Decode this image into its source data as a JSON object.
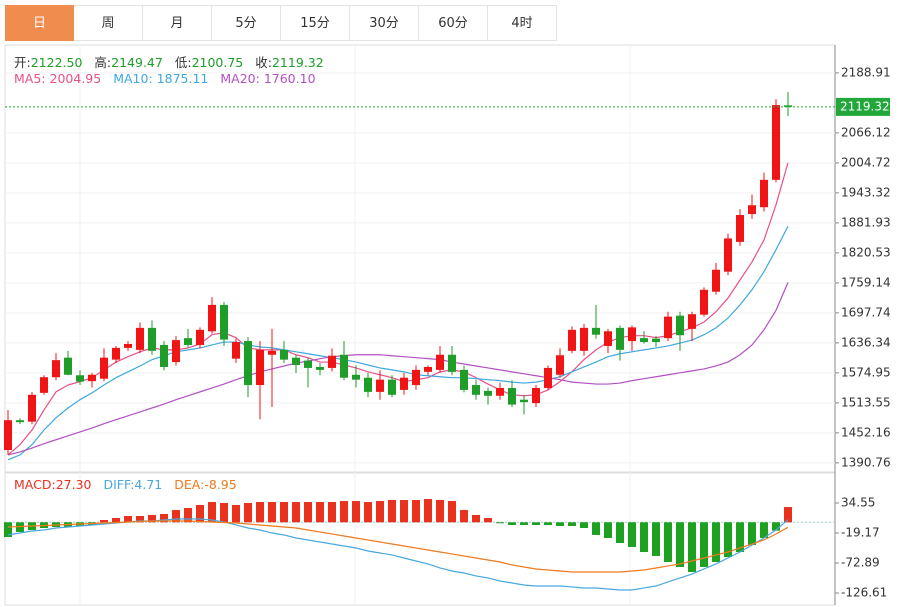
{
  "tabs": [
    "日",
    "周",
    "月",
    "5分",
    "15分",
    "30分",
    "60分",
    "4时"
  ],
  "active_tab": 0,
  "chart_data": [
    {
      "type": "candlestick",
      "readout": [
        {
          "name": "开:",
          "value": "2122.50"
        },
        {
          "name": "高:",
          "value": "2149.47"
        },
        {
          "name": "低:",
          "value": "2100.75"
        },
        {
          "name": "收:",
          "value": "2119.32"
        }
      ],
      "up_color": "#f01414",
      "down_color": "#1e9e28",
      "open": [
        1417,
        1478,
        1475,
        1534,
        1566,
        1606,
        1570,
        1558,
        1563,
        1602,
        1626,
        1622,
        1667,
        1632,
        1597,
        1646,
        1632,
        1660,
        1714,
        1604,
        1640,
        1550,
        1612,
        1622,
        1606,
        1600,
        1587,
        1585,
        1612,
        1571,
        1565,
        1536,
        1561,
        1540,
        1550,
        1577,
        1581,
        1612,
        1581,
        1550,
        1538,
        1528,
        1544,
        1520,
        1513,
        1544,
        1571,
        1620,
        1620,
        1667,
        1630,
        1667,
        1640,
        1646,
        1645,
        1646,
        1692,
        1665,
        1694,
        1741,
        1782,
        1843,
        1900,
        1914,
        1970,
        2122.5
      ],
      "high": [
        1499,
        1482,
        1536,
        1570,
        1615,
        1620,
        1580,
        1575,
        1625,
        1630,
        1640,
        1678,
        1682,
        1640,
        1650,
        1665,
        1668,
        1730,
        1720,
        1645,
        1648,
        1640,
        1665,
        1640,
        1612,
        1606,
        1595,
        1625,
        1640,
        1590,
        1575,
        1580,
        1570,
        1575,
        1590,
        1590,
        1630,
        1630,
        1590,
        1560,
        1545,
        1555,
        1560,
        1530,
        1550,
        1590,
        1625,
        1670,
        1675,
        1714,
        1665,
        1672,
        1672,
        1660,
        1650,
        1700,
        1700,
        1700,
        1750,
        1800,
        1860,
        1910,
        1940,
        1985,
        2135,
        2149.47
      ],
      "low": [
        1407,
        1470,
        1470,
        1530,
        1560,
        1570,
        1550,
        1545,
        1558,
        1595,
        1620,
        1615,
        1612,
        1580,
        1590,
        1625,
        1625,
        1655,
        1630,
        1595,
        1525,
        1480,
        1505,
        1595,
        1575,
        1545,
        1570,
        1578,
        1560,
        1545,
        1525,
        1520,
        1525,
        1530,
        1540,
        1570,
        1575,
        1570,
        1535,
        1520,
        1510,
        1520,
        1505,
        1490,
        1505,
        1540,
        1565,
        1615,
        1610,
        1645,
        1615,
        1600,
        1620,
        1635,
        1628,
        1640,
        1620,
        1640,
        1690,
        1735,
        1775,
        1835,
        1890,
        1905,
        1965,
        2100.75
      ],
      "close": [
        1478,
        1474,
        1530,
        1566,
        1601,
        1571,
        1557,
        1571,
        1606,
        1626,
        1634,
        1667,
        1620,
        1587,
        1642,
        1632,
        1663,
        1714,
        1643,
        1638,
        1550,
        1622,
        1620,
        1602,
        1591,
        1585,
        1581,
        1610,
        1565,
        1561,
        1536,
        1561,
        1530,
        1565,
        1581,
        1587,
        1612,
        1577,
        1540,
        1530,
        1528,
        1544,
        1510,
        1515,
        1544,
        1585,
        1611,
        1663,
        1667,
        1653,
        1660,
        1622,
        1668,
        1638,
        1638,
        1690,
        1652,
        1695,
        1745,
        1786,
        1850,
        1898,
        1918,
        1970,
        2123,
        2119.32
      ],
      "series": [
        {
          "name": "MA5:",
          "last_label": "2004.95",
          "color": "#e8508a",
          "values": [
            1407,
            1428,
            1458,
            1499,
            1536,
            1550,
            1557,
            1565,
            1581,
            1597,
            1608,
            1618,
            1626,
            1622,
            1622,
            1626,
            1634,
            1653,
            1657,
            1647,
            1626,
            1622,
            1622,
            1622,
            1612,
            1606,
            1597,
            1597,
            1591,
            1585,
            1577,
            1571,
            1565,
            1557,
            1561,
            1565,
            1577,
            1581,
            1577,
            1565,
            1552,
            1540,
            1530,
            1528,
            1530,
            1540,
            1557,
            1577,
            1602,
            1622,
            1638,
            1647,
            1651,
            1651,
            1647,
            1651,
            1659,
            1667,
            1679,
            1700,
            1728,
            1765,
            1802,
            1847,
            1919,
            2004.95
          ]
        },
        {
          "name": "MA10:",
          "last_label": "1875.11",
          "color": "#3ea8e0",
          "values": [
            1397,
            1407,
            1428,
            1458,
            1483,
            1503,
            1520,
            1534,
            1550,
            1565,
            1577,
            1589,
            1602,
            1610,
            1618,
            1622,
            1626,
            1632,
            1638,
            1638,
            1632,
            1628,
            1626,
            1622,
            1618,
            1614,
            1610,
            1606,
            1602,
            1597,
            1591,
            1585,
            1581,
            1577,
            1571,
            1569,
            1567,
            1565,
            1565,
            1563,
            1561,
            1559,
            1556,
            1554,
            1556,
            1561,
            1567,
            1577,
            1587,
            1597,
            1608,
            1614,
            1618,
            1622,
            1626,
            1630,
            1636,
            1642,
            1653,
            1667,
            1687,
            1714,
            1745,
            1782,
            1827,
            1875.11
          ]
        },
        {
          "name": "MA20:",
          "last_label": "1760.10",
          "color": "#b450c4",
          "values": [
            1407,
            1413,
            1421,
            1430,
            1438,
            1446,
            1454,
            1462,
            1471,
            1479,
            1487,
            1495,
            1503,
            1511,
            1520,
            1528,
            1536,
            1544,
            1552,
            1561,
            1569,
            1577,
            1583,
            1589,
            1595,
            1599,
            1604,
            1608,
            1610,
            1612,
            1612,
            1612,
            1610,
            1608,
            1606,
            1604,
            1602,
            1597,
            1593,
            1589,
            1585,
            1581,
            1577,
            1573,
            1569,
            1565,
            1561,
            1556,
            1554,
            1552,
            1552,
            1554,
            1559,
            1563,
            1567,
            1571,
            1575,
            1579,
            1583,
            1589,
            1597,
            1612,
            1632,
            1663,
            1703,
            1760.1
          ]
        }
      ],
      "last_price_color": "#22a83a",
      "ylim": [
        1372,
        2246
      ],
      "yticks": [
        2188.91,
        2066.12,
        2004.72,
        1943.32,
        1881.93,
        1820.53,
        1759.14,
        1697.74,
        1636.34,
        1574.95,
        1513.55,
        1452.16,
        1390.76
      ],
      "grid": true
    },
    {
      "type": "macd",
      "series": [
        {
          "name": "MACD:",
          "type": "bar",
          "last_label": "27.30",
          "color": "#e8321e",
          "down_color": "#1ea020",
          "values": [
            -26.3,
            -17.4,
            -13.8,
            -10.2,
            -8.4,
            -8.4,
            -6.6,
            -4.8,
            4.1,
            7.7,
            11.3,
            11.3,
            13.1,
            14.9,
            22.0,
            25.6,
            31.0,
            36.3,
            34.6,
            31.0,
            34.6,
            36.3,
            36.3,
            36.3,
            36.3,
            36.3,
            36.3,
            36.3,
            38.1,
            38.1,
            36.3,
            38.1,
            39.9,
            39.9,
            39.9,
            41.7,
            39.9,
            38.1,
            22.0,
            13.1,
            7.7,
            -1.5,
            -4.8,
            -4.8,
            -4.8,
            -4.8,
            -6.6,
            -6.6,
            -10.2,
            -22.7,
            -28.1,
            -37.1,
            -44.2,
            -53.2,
            -60.3,
            -71.1,
            -80.0,
            -89.0,
            -80.0,
            -71.1,
            -62.1,
            -53.2,
            -40.6,
            -28.1,
            -15.0,
            27.3
          ]
        },
        {
          "name": "DIFF:",
          "type": "line",
          "last_label": "4.71",
          "color": "#4aa8e0",
          "values": [
            -22.7,
            -19.2,
            -15.6,
            -13.8,
            -10.2,
            -8.4,
            -6.6,
            -4.8,
            -3.0,
            -1.3,
            0.5,
            2.3,
            2.3,
            4.1,
            5.9,
            5.9,
            5.9,
            4.1,
            0.5,
            -4.8,
            -10.2,
            -13.8,
            -19.2,
            -22.7,
            -28.1,
            -31.7,
            -35.3,
            -38.9,
            -42.4,
            -46.0,
            -51.4,
            -55.0,
            -58.5,
            -63.9,
            -69.3,
            -74.6,
            -81.8,
            -87.2,
            -90.8,
            -96.1,
            -99.7,
            -105.1,
            -108.7,
            -112.3,
            -114.1,
            -114.1,
            -114.1,
            -115.8,
            -117.6,
            -117.6,
            -119.4,
            -121.2,
            -121.2,
            -117.6,
            -114.1,
            -106.9,
            -99.7,
            -92.6,
            -83.6,
            -74.6,
            -63.9,
            -53.2,
            -40.6,
            -28.1,
            -13.8,
            4.71
          ]
        },
        {
          "name": "DEA:",
          "type": "line",
          "last_label": "-8.95",
          "color": "#f07a1e",
          "values": [
            -8.4,
            -7.5,
            -6.6,
            -5.7,
            -4.8,
            -3.9,
            -3.0,
            -2.1,
            -1.3,
            -0.4,
            0.5,
            1.4,
            2.3,
            2.3,
            2.3,
            2.3,
            1.4,
            0.5,
            -0.4,
            -1.3,
            -3.0,
            -4.8,
            -6.6,
            -8.4,
            -10.2,
            -13.8,
            -17.4,
            -20.9,
            -24.5,
            -28.1,
            -31.7,
            -35.3,
            -38.9,
            -42.4,
            -46.0,
            -49.6,
            -53.2,
            -56.7,
            -60.3,
            -63.9,
            -67.5,
            -71.1,
            -76.4,
            -80.0,
            -83.6,
            -85.4,
            -87.2,
            -89.0,
            -89.0,
            -89.0,
            -89.0,
            -89.0,
            -87.2,
            -85.4,
            -81.8,
            -78.2,
            -74.6,
            -69.3,
            -63.9,
            -58.5,
            -53.2,
            -46.0,
            -38.9,
            -31.7,
            -21.0,
            -8.95
          ]
        }
      ],
      "ylim": [
        -148.1,
        84.7
      ],
      "yticks": [
        34.55,
        -19.17,
        -72.89,
        -126.61
      ]
    }
  ]
}
